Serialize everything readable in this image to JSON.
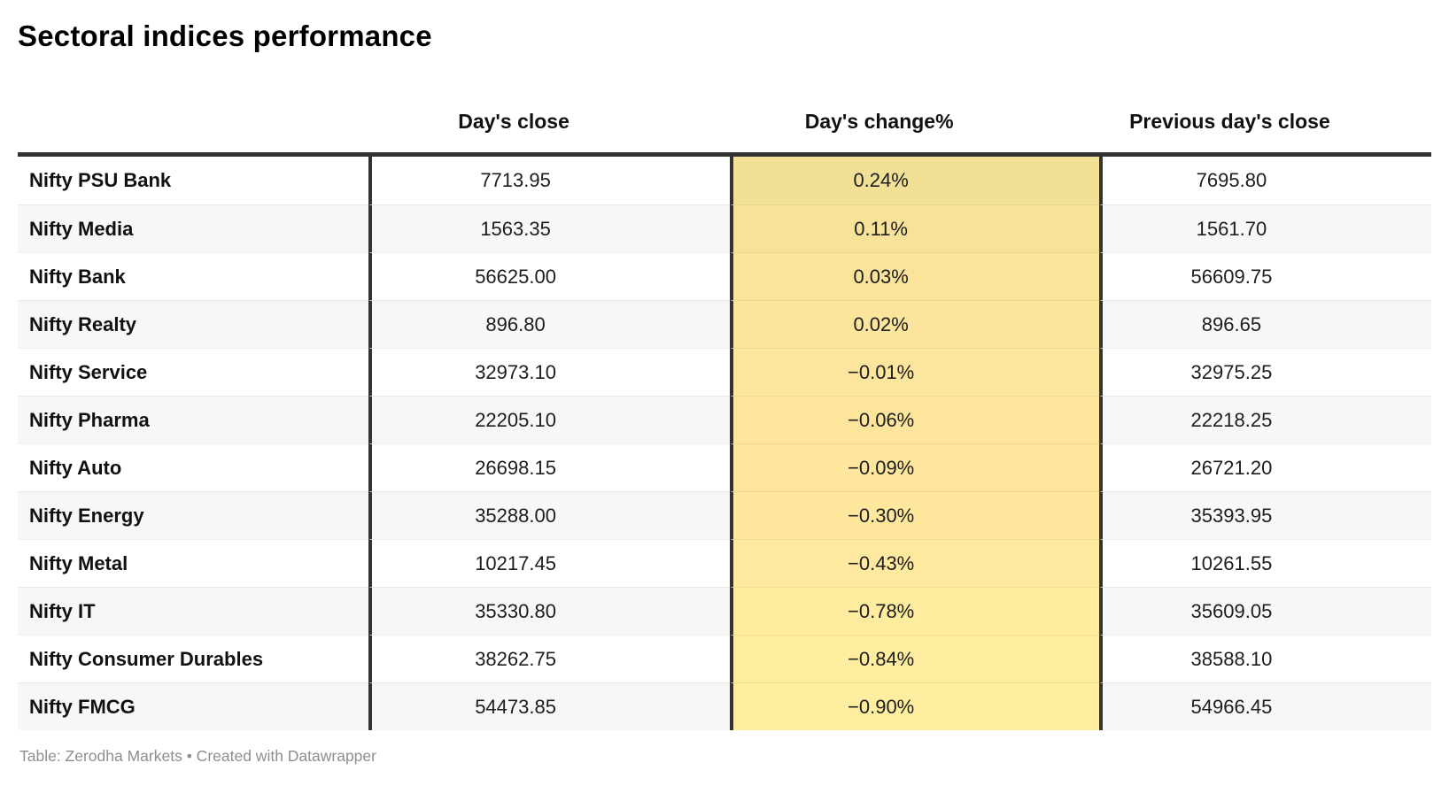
{
  "title": "Sectoral indices performance",
  "footer": "Table: Zerodha Markets • Created with Datawrapper",
  "colors": {
    "border_dark": "#333333",
    "row_alt_bg": "#f7f7f7",
    "footer_text": "#8e8e8e",
    "change_col_scale_top": "#f1e095",
    "change_col_scale_bottom": "#ffee9f"
  },
  "chart_data": {
    "type": "table",
    "title": "Sectoral indices performance",
    "columns": [
      "",
      "Day's close",
      "Day's change%",
      "Previous day's close"
    ],
    "rows": [
      {
        "label": "Nifty PSU Bank",
        "close": "7713.95",
        "change": "0.24%",
        "prev": "7695.80",
        "change_bg": "#f1e095"
      },
      {
        "label": "Nifty Media",
        "close": "1563.35",
        "change": "0.11%",
        "prev": "1561.70",
        "change_bg": "#f6e298"
      },
      {
        "label": "Nifty Bank",
        "close": "56625.00",
        "change": "0.03%",
        "prev": "56609.75",
        "change_bg": "#fae49a"
      },
      {
        "label": "Nifty Realty",
        "close": "896.80",
        "change": "0.02%",
        "prev": "896.65",
        "change_bg": "#fbe49b"
      },
      {
        "label": "Nifty Service",
        "close": "32973.10",
        "change": "−0.01%",
        "prev": "32975.25",
        "change_bg": "#fce59c"
      },
      {
        "label": "Nifty Pharma",
        "close": "22205.10",
        "change": "−0.06%",
        "prev": "22218.25",
        "change_bg": "#fde59c"
      },
      {
        "label": "Nifty Auto",
        "close": "26698.15",
        "change": "−0.09%",
        "prev": "26721.20",
        "change_bg": "#ffe69d"
      },
      {
        "label": "Nifty Energy",
        "close": "35288.00",
        "change": "−0.30%",
        "prev": "35393.95",
        "change_bg": "#ffe79d"
      },
      {
        "label": "Nifty Metal",
        "close": "10217.45",
        "change": "−0.43%",
        "prev": "10261.55",
        "change_bg": "#ffe99e"
      },
      {
        "label": "Nifty IT",
        "close": "35330.80",
        "change": "−0.78%",
        "prev": "35609.05",
        "change_bg": "#ffec9f"
      },
      {
        "label": "Nifty Consumer Durables",
        "close": "38262.75",
        "change": "−0.84%",
        "prev": "38588.10",
        "change_bg": "#ffed9f"
      },
      {
        "label": "Nifty FMCG",
        "close": "54473.85",
        "change": "−0.90%",
        "prev": "54966.45",
        "change_bg": "#ffee9f"
      }
    ]
  }
}
